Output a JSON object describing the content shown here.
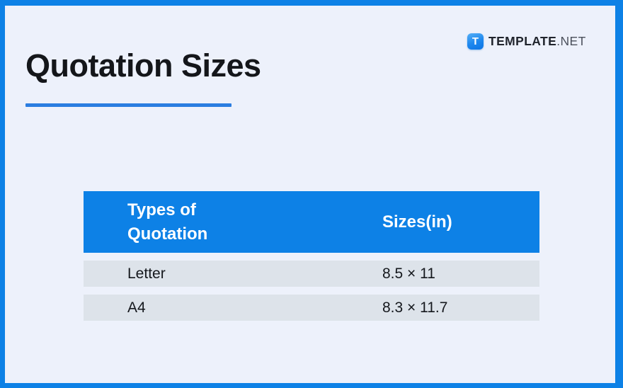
{
  "page": {
    "title": "Quotation Sizes"
  },
  "brand": {
    "icon_letter": "T",
    "name_bold": "TEMPLATE",
    "name_suffix": ".NET"
  },
  "table": {
    "headers": [
      "Types of Quotation",
      "Sizes(in)"
    ],
    "rows": [
      {
        "type": "Letter",
        "size": "8.5 × 11"
      },
      {
        "type": "A4",
        "size": "8.3 × 11.7"
      }
    ]
  },
  "colors": {
    "accent_blue": "#0d81e6",
    "underline_blue": "#2b7de0",
    "page_bg": "#edf1fb",
    "row_bg": "#dde3ea",
    "title_color": "#14161a",
    "header_text": "#ffffff",
    "brand_dark": "#20242c",
    "brand_gray": "#4c515c"
  }
}
